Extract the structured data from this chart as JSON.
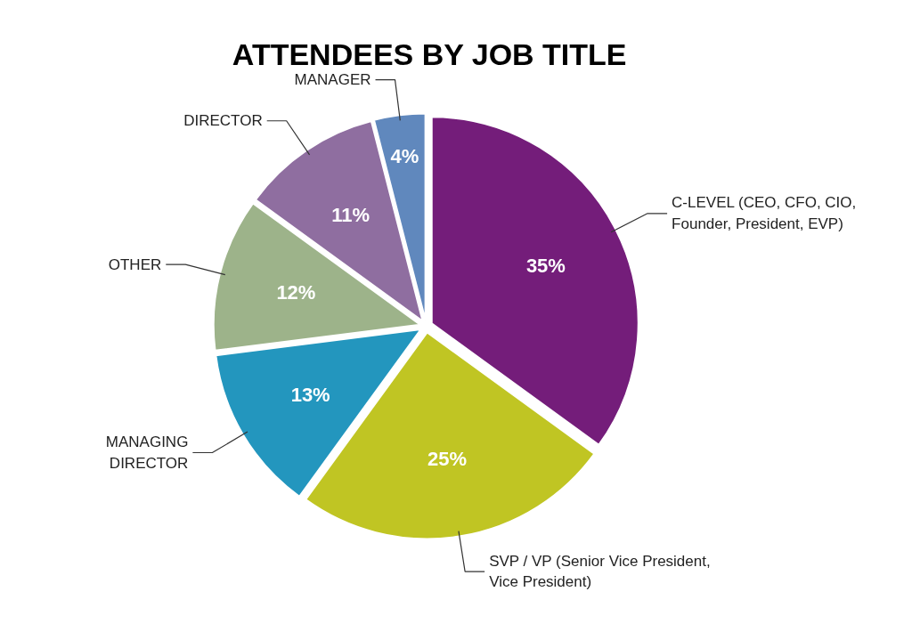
{
  "chart_data": {
    "type": "pie",
    "title": "ATTENDEES BY JOB TITLE",
    "categories": [
      "C-LEVEL (CEO, CFO, CIO,\nFounder, President, EVP)",
      "SVP / VP (Senior Vice President,\nVice President)",
      "MANAGING\nDIRECTOR",
      "OTHER",
      "DIRECTOR",
      "MANAGER"
    ],
    "values": [
      35,
      25,
      13,
      12,
      11,
      4
    ],
    "colors": [
      "#741d7a",
      "#c0c523",
      "#2396be",
      "#9db38a",
      "#8f6ea0",
      "#6088bd"
    ],
    "value_labels": [
      "35%",
      "25%",
      "13%",
      "12%",
      "11%",
      "4%"
    ]
  }
}
